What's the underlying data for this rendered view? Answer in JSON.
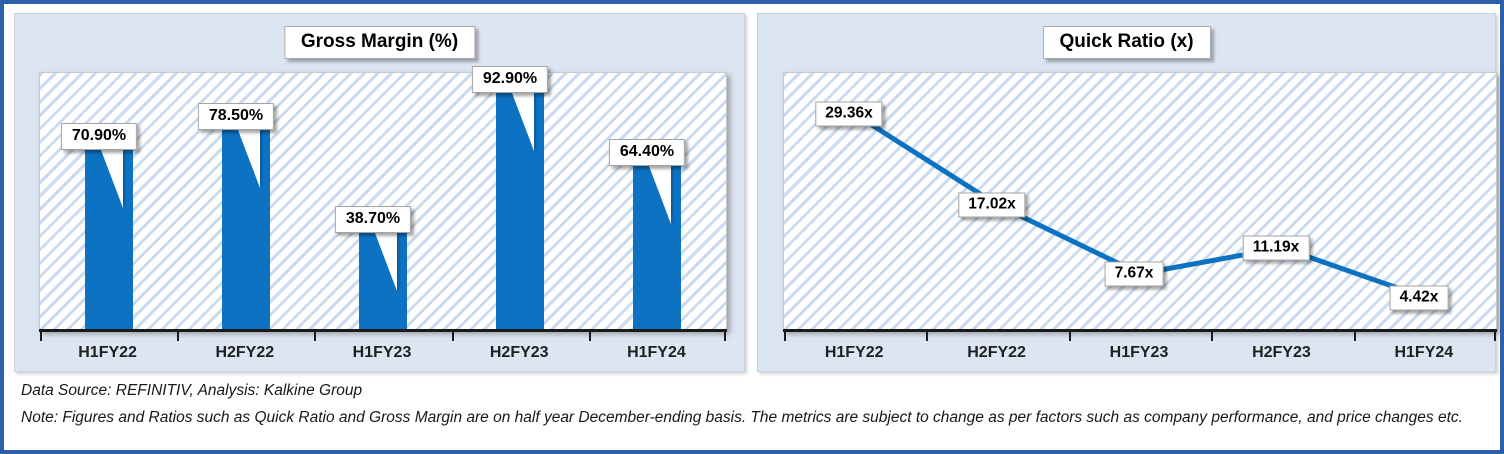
{
  "colors": {
    "accent_blue": "#0D72C2",
    "frame_border": "#2E5FA9",
    "card_bg": "#DCE5F2",
    "hatch_stripe": "#ADC7E7",
    "axis": "#1A1A1A"
  },
  "chart_data": [
    {
      "type": "bar",
      "title": "Gross Margin (%)",
      "categories": [
        "H1FY22",
        "H2FY22",
        "H1FY23",
        "H2FY23",
        "H1FY24"
      ],
      "values": [
        70.9,
        78.5,
        38.7,
        92.9,
        64.4
      ],
      "labels": [
        "70.90%",
        "78.50%",
        "38.70%",
        "92.90%",
        "64.40%"
      ],
      "ylim": [
        0,
        100
      ],
      "xlabel": "",
      "ylabel": "",
      "grid": false,
      "legend": "none",
      "bar_color": "#0D72C2"
    },
    {
      "type": "line",
      "title": "Quick Ratio (x)",
      "categories": [
        "H1FY22",
        "H2FY22",
        "H1FY23",
        "H2FY23",
        "H1FY24"
      ],
      "values": [
        29.36,
        17.02,
        7.67,
        11.19,
        4.42
      ],
      "labels": [
        "29.36x",
        "17.02x",
        "7.67x",
        "11.19x",
        "4.42x"
      ],
      "ylim": [
        0,
        35
      ],
      "xlabel": "",
      "ylabel": "",
      "grid": false,
      "legend": "none",
      "line_color": "#0D72C2"
    }
  ],
  "footer": {
    "source_line": "Data Source: REFINITIV, Analysis: Kalkine Group",
    "note_line": "Note: Figures and Ratios such as Quick Ratio and Gross Margin are on half year December-ending basis. The metrics are subject to change as per factors such as company performance, and price changes etc."
  }
}
